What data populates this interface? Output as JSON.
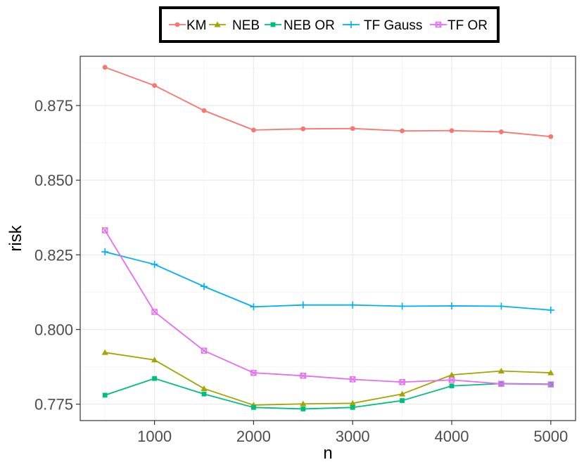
{
  "chart_data": {
    "type": "line",
    "xlabel": "n",
    "ylabel": "risk",
    "x": [
      500,
      1000,
      1500,
      2000,
      2500,
      3000,
      3500,
      4000,
      4500,
      5000
    ],
    "xlim": [
      250,
      5250
    ],
    "ylim": [
      0.7695,
      0.8915
    ],
    "xticks": [
      1000,
      2000,
      3000,
      4000,
      5000
    ],
    "xtick_labels": [
      "1000",
      "2000",
      "3000",
      "4000",
      "5000"
    ],
    "yticks": [
      0.775,
      0.8,
      0.825,
      0.85,
      0.875
    ],
    "ytick_labels": [
      "0.775",
      "0.800",
      "0.825",
      "0.850",
      "0.875"
    ],
    "grid": true,
    "legend_position": "top",
    "series": [
      {
        "name": "KM",
        "color": "#f8766d",
        "marker": "circle",
        "values": [
          0.8878,
          0.8817,
          0.8733,
          0.8668,
          0.8672,
          0.8673,
          0.8665,
          0.8666,
          0.8662,
          0.8646
        ]
      },
      {
        "name": "NEB",
        "color": "#a3a500",
        "marker": "triangle",
        "values": [
          0.7923,
          0.7898,
          0.7802,
          0.7747,
          0.7751,
          0.7753,
          0.7784,
          0.7848,
          0.7861,
          0.7855
        ]
      },
      {
        "name": "NEB OR",
        "color": "#00bf7d",
        "marker": "square",
        "values": [
          0.778,
          0.7836,
          0.7784,
          0.7739,
          0.7734,
          0.7739,
          0.7762,
          0.7811,
          0.7819,
          0.7817
        ]
      },
      {
        "name": "TF Gauss",
        "color": "#00b0f6",
        "marker": "plus",
        "values": [
          0.826,
          0.8218,
          0.8144,
          0.8076,
          0.8082,
          0.8082,
          0.8078,
          0.8079,
          0.8078,
          0.8065
        ]
      },
      {
        "name": "TF OR",
        "color": "#e76bf3",
        "marker": "boxx",
        "values": [
          0.8332,
          0.8059,
          0.7929,
          0.7855,
          0.7845,
          0.7833,
          0.7824,
          0.7831,
          0.7818,
          0.7816
        ]
      }
    ]
  }
}
